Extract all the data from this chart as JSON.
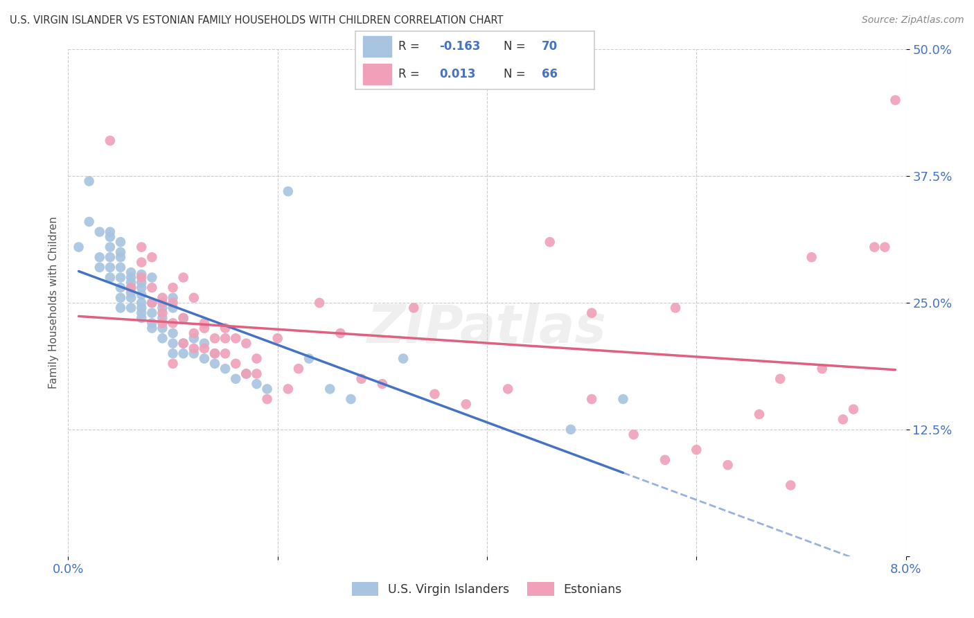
{
  "title": "U.S. VIRGIN ISLANDER VS ESTONIAN FAMILY HOUSEHOLDS WITH CHILDREN CORRELATION CHART",
  "source": "Source: ZipAtlas.com",
  "ylabel": "Family Households with Children",
  "legend_label1": "U.S. Virgin Islanders",
  "legend_label2": "Estonians",
  "R1": "-0.163",
  "N1": "70",
  "R2": "0.013",
  "N2": "66",
  "xmin": 0.0,
  "xmax": 0.08,
  "ymin": 0.0,
  "ymax": 0.5,
  "yticks": [
    0.0,
    0.125,
    0.25,
    0.375,
    0.5
  ],
  "ytick_labels": [
    "",
    "12.5%",
    "25.0%",
    "37.5%",
    "50.0%"
  ],
  "xticks": [
    0.0,
    0.02,
    0.04,
    0.06,
    0.08
  ],
  "xtick_labels": [
    "0.0%",
    "",
    "",
    "",
    "8.0%"
  ],
  "blue_color": "#a8c4e0",
  "pink_color": "#f0a0b8",
  "blue_line_color": "#4472c4",
  "pink_line_color": "#e06080",
  "label_color": "#4472c4",
  "watermark": "ZIPatlas",
  "blue_points_x": [
    0.001,
    0.002,
    0.002,
    0.003,
    0.003,
    0.003,
    0.004,
    0.004,
    0.004,
    0.004,
    0.004,
    0.004,
    0.005,
    0.005,
    0.005,
    0.005,
    0.005,
    0.005,
    0.005,
    0.005,
    0.006,
    0.006,
    0.006,
    0.006,
    0.006,
    0.006,
    0.006,
    0.007,
    0.007,
    0.007,
    0.007,
    0.007,
    0.007,
    0.007,
    0.007,
    0.008,
    0.008,
    0.008,
    0.008,
    0.008,
    0.009,
    0.009,
    0.009,
    0.009,
    0.01,
    0.01,
    0.01,
    0.01,
    0.01,
    0.011,
    0.011,
    0.011,
    0.012,
    0.012,
    0.013,
    0.013,
    0.014,
    0.014,
    0.015,
    0.016,
    0.017,
    0.018,
    0.019,
    0.021,
    0.023,
    0.025,
    0.027,
    0.032,
    0.048,
    0.053
  ],
  "blue_points_y": [
    0.305,
    0.37,
    0.33,
    0.285,
    0.295,
    0.32,
    0.275,
    0.285,
    0.295,
    0.305,
    0.315,
    0.32,
    0.245,
    0.255,
    0.265,
    0.275,
    0.285,
    0.295,
    0.3,
    0.31,
    0.245,
    0.255,
    0.26,
    0.265,
    0.27,
    0.275,
    0.28,
    0.235,
    0.24,
    0.245,
    0.25,
    0.258,
    0.265,
    0.27,
    0.278,
    0.225,
    0.23,
    0.24,
    0.25,
    0.275,
    0.215,
    0.225,
    0.235,
    0.245,
    0.2,
    0.21,
    0.22,
    0.245,
    0.255,
    0.2,
    0.21,
    0.235,
    0.2,
    0.215,
    0.195,
    0.21,
    0.19,
    0.2,
    0.185,
    0.175,
    0.18,
    0.17,
    0.165,
    0.36,
    0.195,
    0.165,
    0.155,
    0.195,
    0.125,
    0.155
  ],
  "pink_points_x": [
    0.004,
    0.006,
    0.007,
    0.007,
    0.007,
    0.008,
    0.008,
    0.008,
    0.009,
    0.009,
    0.009,
    0.009,
    0.01,
    0.01,
    0.01,
    0.01,
    0.011,
    0.011,
    0.011,
    0.012,
    0.012,
    0.012,
    0.013,
    0.013,
    0.013,
    0.014,
    0.014,
    0.015,
    0.015,
    0.015,
    0.016,
    0.016,
    0.017,
    0.017,
    0.018,
    0.018,
    0.019,
    0.02,
    0.021,
    0.022,
    0.024,
    0.026,
    0.028,
    0.03,
    0.033,
    0.035,
    0.038,
    0.042,
    0.046,
    0.05,
    0.054,
    0.057,
    0.06,
    0.063,
    0.066,
    0.069,
    0.072,
    0.075,
    0.077,
    0.079,
    0.05,
    0.058,
    0.068,
    0.071,
    0.074,
    0.078
  ],
  "pink_points_y": [
    0.41,
    0.265,
    0.275,
    0.29,
    0.305,
    0.25,
    0.265,
    0.295,
    0.23,
    0.24,
    0.25,
    0.255,
    0.19,
    0.23,
    0.25,
    0.265,
    0.21,
    0.235,
    0.275,
    0.205,
    0.22,
    0.255,
    0.205,
    0.225,
    0.23,
    0.2,
    0.215,
    0.2,
    0.215,
    0.225,
    0.19,
    0.215,
    0.18,
    0.21,
    0.18,
    0.195,
    0.155,
    0.215,
    0.165,
    0.185,
    0.25,
    0.22,
    0.175,
    0.17,
    0.245,
    0.16,
    0.15,
    0.165,
    0.31,
    0.155,
    0.12,
    0.095,
    0.105,
    0.09,
    0.14,
    0.07,
    0.185,
    0.145,
    0.305,
    0.45,
    0.24,
    0.245,
    0.175,
    0.295,
    0.135,
    0.305
  ],
  "blue_line_x0": 0.001,
  "blue_line_x1": 0.053,
  "blue_line_xd0": 0.053,
  "blue_line_xd1": 0.08,
  "pink_line_x0": 0.001,
  "pink_line_x1": 0.079
}
